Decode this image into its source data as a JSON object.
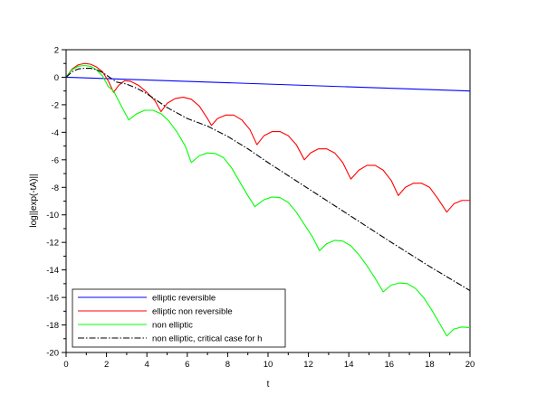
{
  "chart_data": {
    "type": "line",
    "title": "",
    "xlabel": "t",
    "ylabel": "log||exp(-tA)||",
    "xlim": [
      0,
      20
    ],
    "ylim": [
      -20,
      2
    ],
    "xticks": [
      0,
      2,
      4,
      6,
      8,
      10,
      12,
      14,
      16,
      18,
      20
    ],
    "yticks": [
      -20,
      -18,
      -16,
      -14,
      -12,
      -10,
      -8,
      -6,
      -4,
      -2,
      0,
      2
    ],
    "grid": false,
    "legend_position": "bottom-left",
    "series": [
      {
        "name": "elliptic reversible",
        "color": "#0000ff",
        "style": "solid",
        "points": [
          [
            0,
            0
          ],
          [
            20,
            -1.0
          ]
        ]
      },
      {
        "name": "elliptic non reversible",
        "color": "#ff0000",
        "style": "solid",
        "points": [
          [
            0,
            0
          ],
          [
            0.3,
            0.6
          ],
          [
            0.6,
            0.9
          ],
          [
            0.9,
            1.0
          ],
          [
            1.2,
            0.95
          ],
          [
            1.5,
            0.75
          ],
          [
            1.8,
            0.4
          ],
          [
            2.1,
            -0.3
          ],
          [
            2.35,
            -1.1
          ],
          [
            2.6,
            -0.6
          ],
          [
            2.9,
            -0.25
          ],
          [
            3.2,
            -0.3
          ],
          [
            3.6,
            -0.6
          ],
          [
            4.0,
            -1.1
          ],
          [
            4.4,
            -1.7
          ],
          [
            4.7,
            -2.5
          ],
          [
            5.0,
            -1.9
          ],
          [
            5.4,
            -1.55
          ],
          [
            5.8,
            -1.45
          ],
          [
            6.2,
            -1.6
          ],
          [
            6.6,
            -2.1
          ],
          [
            7.0,
            -3.0
          ],
          [
            7.2,
            -3.5
          ],
          [
            7.5,
            -3.0
          ],
          [
            7.9,
            -2.75
          ],
          [
            8.3,
            -2.75
          ],
          [
            8.7,
            -3.1
          ],
          [
            9.1,
            -3.8
          ],
          [
            9.45,
            -4.9
          ],
          [
            9.8,
            -4.25
          ],
          [
            10.2,
            -3.95
          ],
          [
            10.6,
            -3.95
          ],
          [
            11.0,
            -4.25
          ],
          [
            11.4,
            -4.9
          ],
          [
            11.8,
            -6.0
          ],
          [
            12.1,
            -5.5
          ],
          [
            12.5,
            -5.2
          ],
          [
            12.9,
            -5.2
          ],
          [
            13.3,
            -5.5
          ],
          [
            13.7,
            -6.2
          ],
          [
            14.1,
            -7.4
          ],
          [
            14.5,
            -6.75
          ],
          [
            14.9,
            -6.4
          ],
          [
            15.3,
            -6.4
          ],
          [
            15.7,
            -6.75
          ],
          [
            16.1,
            -7.5
          ],
          [
            16.45,
            -8.6
          ],
          [
            16.8,
            -8.0
          ],
          [
            17.2,
            -7.7
          ],
          [
            17.6,
            -7.7
          ],
          [
            18.0,
            -8.0
          ],
          [
            18.4,
            -8.8
          ],
          [
            18.85,
            -9.8
          ],
          [
            19.2,
            -9.2
          ],
          [
            19.6,
            -8.95
          ],
          [
            20.0,
            -8.95
          ]
        ]
      },
      {
        "name": "non elliptic",
        "color": "#00ff00",
        "style": "solid",
        "points": [
          [
            0,
            0
          ],
          [
            0.3,
            0.55
          ],
          [
            0.6,
            0.8
          ],
          [
            0.9,
            0.85
          ],
          [
            1.2,
            0.8
          ],
          [
            1.5,
            0.55
          ],
          [
            1.8,
            0.1
          ],
          [
            2.1,
            -0.7
          ],
          [
            2.35,
            -1.0
          ],
          [
            2.7,
            -2.0
          ],
          [
            3.1,
            -3.1
          ],
          [
            3.5,
            -2.65
          ],
          [
            3.9,
            -2.4
          ],
          [
            4.3,
            -2.4
          ],
          [
            4.7,
            -2.65
          ],
          [
            5.1,
            -3.2
          ],
          [
            5.5,
            -4.0
          ],
          [
            5.9,
            -5.0
          ],
          [
            6.2,
            -6.2
          ],
          [
            6.6,
            -5.7
          ],
          [
            7.0,
            -5.5
          ],
          [
            7.4,
            -5.55
          ],
          [
            7.8,
            -5.85
          ],
          [
            8.2,
            -6.6
          ],
          [
            8.6,
            -7.6
          ],
          [
            9.0,
            -8.6
          ],
          [
            9.35,
            -9.4
          ],
          [
            9.8,
            -8.9
          ],
          [
            10.2,
            -8.7
          ],
          [
            10.6,
            -8.75
          ],
          [
            11.0,
            -9.1
          ],
          [
            11.4,
            -9.8
          ],
          [
            11.8,
            -10.7
          ],
          [
            12.2,
            -11.6
          ],
          [
            12.55,
            -12.6
          ],
          [
            12.9,
            -12.1
          ],
          [
            13.3,
            -11.85
          ],
          [
            13.7,
            -11.9
          ],
          [
            14.1,
            -12.25
          ],
          [
            14.5,
            -12.9
          ],
          [
            14.9,
            -13.7
          ],
          [
            15.3,
            -14.6
          ],
          [
            15.7,
            -15.6
          ],
          [
            16.1,
            -15.1
          ],
          [
            16.5,
            -14.95
          ],
          [
            16.9,
            -15.0
          ],
          [
            17.3,
            -15.35
          ],
          [
            17.7,
            -16.0
          ],
          [
            18.1,
            -16.9
          ],
          [
            18.5,
            -17.9
          ],
          [
            18.85,
            -18.8
          ],
          [
            19.2,
            -18.3
          ],
          [
            19.6,
            -18.15
          ],
          [
            20.0,
            -18.2
          ]
        ]
      },
      {
        "name": "non elliptic, critical case for h",
        "color": "#000000",
        "style": "dash-dot",
        "points": [
          [
            0,
            0
          ],
          [
            0.3,
            0.4
          ],
          [
            0.6,
            0.6
          ],
          [
            0.9,
            0.65
          ],
          [
            1.2,
            0.65
          ],
          [
            1.5,
            0.55
          ],
          [
            1.8,
            0.35
          ],
          [
            2.1,
            0.05
          ],
          [
            2.5,
            -0.35
          ],
          [
            3.0,
            -0.5
          ],
          [
            3.5,
            -0.8
          ],
          [
            4.0,
            -1.2
          ],
          [
            5.0,
            -2.2
          ],
          [
            6.0,
            -3.0
          ],
          [
            7.0,
            -3.55
          ],
          [
            8.0,
            -4.3
          ],
          [
            9.0,
            -5.2
          ],
          [
            10.0,
            -6.2
          ],
          [
            12.0,
            -8.1
          ],
          [
            14.0,
            -10.0
          ],
          [
            16.0,
            -11.9
          ],
          [
            18.0,
            -13.75
          ],
          [
            20.0,
            -15.5
          ]
        ]
      }
    ]
  }
}
